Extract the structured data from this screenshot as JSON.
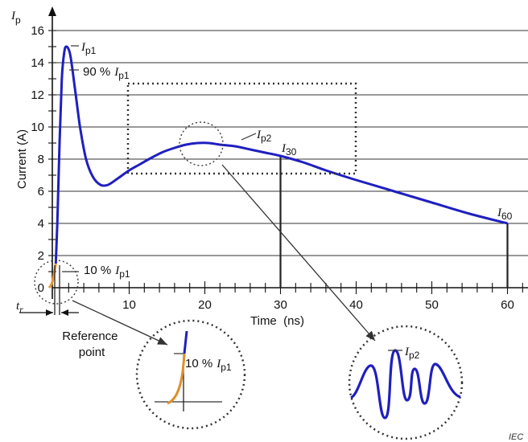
{
  "chart_data": {
    "type": "line",
    "xlabel": "Time  (ns)",
    "ylabel": "Current  (A)",
    "y_axis_symbol": {
      "main": "I",
      "sub": "p"
    },
    "x_ticks": [
      "10",
      "20",
      "30",
      "40",
      "50",
      "60"
    ],
    "y_ticks": [
      "0",
      "2",
      "4",
      "6",
      "8",
      "10",
      "12",
      "14",
      "16"
    ],
    "xlim": [
      -1.5,
      62
    ],
    "ylim": [
      0,
      16.8
    ],
    "grid": "horizontal",
    "series": [
      {
        "color": "#1f1fc0",
        "x": [
          0.3,
          0.5,
          0.8,
          1.1,
          1.4,
          1.7,
          2.2,
          2.8,
          3.5,
          4.3,
          5.2,
          6.2,
          7.2,
          8.5,
          10,
          11.5,
          13,
          14.5,
          16,
          17.5,
          19,
          20.5,
          22,
          24,
          26,
          28,
          30,
          33,
          36,
          40,
          45,
          50,
          55,
          60
        ],
        "y": [
          1.5,
          4,
          9,
          13,
          14.6,
          15,
          14.5,
          12.5,
          10,
          8,
          6.9,
          6.4,
          6.4,
          6.8,
          7.3,
          7.7,
          8.1,
          8.45,
          8.7,
          8.9,
          9.0,
          9.0,
          8.9,
          8.8,
          8.6,
          8.4,
          8.2,
          7.8,
          7.3,
          6.7,
          6.0,
          5.3,
          4.6,
          4.0
        ]
      },
      {
        "color": "#e8952f",
        "x": [
          -0.6,
          -0.4,
          -0.2,
          0.0,
          0.15,
          0.3
        ],
        "y": [
          0.0,
          0.1,
          0.3,
          0.7,
          1.1,
          1.5
        ]
      }
    ],
    "annotations": {
      "ip1": {
        "main": "I",
        "sub": "p1"
      },
      "pct90": {
        "prefix": "90 %",
        "main": "I",
        "sub": "p1"
      },
      "ip2": {
        "main": "I",
        "sub": "p2"
      },
      "i30": {
        "main": "I",
        "sub": "30"
      },
      "i60": {
        "main": "I",
        "sub": "60"
      },
      "pct10": {
        "prefix": "10 %",
        "main": "I",
        "sub": "p1"
      },
      "tr": {
        "main": "t",
        "sub": "r"
      },
      "reference_point": [
        "Reference",
        "point"
      ],
      "inset_left_label": {
        "prefix": "10 %",
        "main": "I",
        "sub": "p1"
      },
      "inset_right_label": {
        "main": "I",
        "sub": "p2"
      },
      "corner_mark": "IEC"
    }
  }
}
